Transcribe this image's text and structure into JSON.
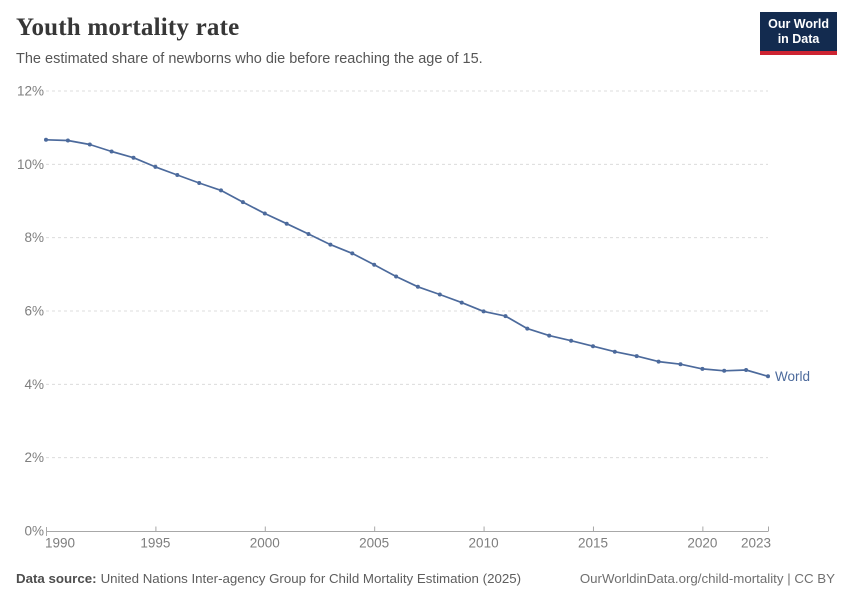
{
  "header": {
    "title": "Youth mortality rate",
    "subtitle": "The estimated share of newborns who die before reaching the age of 15.",
    "logo": {
      "line1": "Our World",
      "line2": "in Data"
    }
  },
  "chart_data": {
    "type": "line",
    "title": "Youth mortality rate",
    "xlabel": "",
    "ylabel": "",
    "xlim": [
      1990,
      2023
    ],
    "ylim": [
      0,
      12
    ],
    "y_ticks": [
      0,
      2,
      4,
      6,
      8,
      10,
      12
    ],
    "y_tick_suffix": "%",
    "x_ticks": [
      1990,
      1995,
      2000,
      2005,
      2010,
      2015,
      2020,
      2023
    ],
    "grid": "horizontal-dashed",
    "legend_position": "end-of-line-label",
    "x": [
      1990,
      1991,
      1992,
      1993,
      1994,
      1995,
      1996,
      1997,
      1998,
      1999,
      2000,
      2001,
      2002,
      2003,
      2004,
      2005,
      2006,
      2007,
      2008,
      2009,
      2010,
      2011,
      2012,
      2013,
      2014,
      2015,
      2016,
      2017,
      2018,
      2019,
      2020,
      2021,
      2022,
      2023
    ],
    "series": [
      {
        "name": "World",
        "color": "#4c6a9c",
        "values": [
          10.67,
          10.65,
          10.54,
          10.35,
          10.18,
          9.93,
          9.71,
          9.49,
          9.29,
          8.97,
          8.66,
          8.38,
          8.1,
          7.81,
          7.57,
          7.26,
          6.94,
          6.66,
          6.45,
          6.23,
          5.99,
          5.86,
          5.52,
          5.33,
          5.19,
          5.04,
          4.89,
          4.77,
          4.62,
          4.55,
          4.42,
          4.37,
          4.39,
          4.22
        ]
      }
    ]
  },
  "appearance": {
    "grid_color": "#dcdcdc",
    "axis_color": "#a8a8a8",
    "tick_label_color": "#7e7e7e",
    "line_color": "#4c6a9c",
    "logo_bg": "#132b4f",
    "logo_accent": "#cd2432"
  },
  "footer": {
    "source_label": "Data source:",
    "source_text": "United Nations Inter-agency Group for Child Mortality Estimation (2025)",
    "attribution": "OurWorldinData.org/child-mortality | CC BY"
  }
}
